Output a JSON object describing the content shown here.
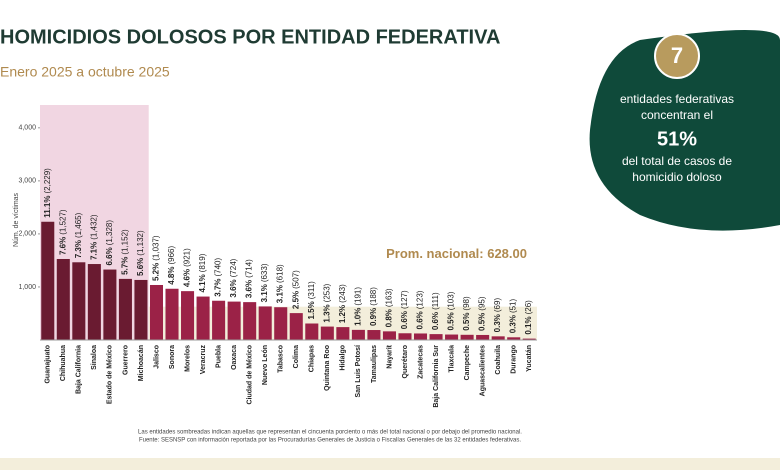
{
  "chart_data": {
    "type": "bar",
    "title": "HOMICIDIOS DOLOSOS POR ENTIDAD FEDERATIVA",
    "subtitle": "Enero 2025 a octubre 2025",
    "y_label": "Núm. de víctimas",
    "categories": [
      "Guanajuato",
      "Chihuahua",
      "Baja California",
      "Sinaloa",
      "Estado de México",
      "Guerrero",
      "Michoacán",
      "Jalisco",
      "Sonora",
      "Morelos",
      "Veracruz",
      "Puebla",
      "Oaxaca",
      "Ciudad de México",
      "Nuevo León",
      "Tabasco",
      "Colima",
      "Chiapas",
      "Quintana Roo",
      "Hidalgo",
      "San Luis Potosí",
      "Tamaulipas",
      "Nayarit",
      "Querétaro",
      "Zacatecas",
      "Baja California Sur",
      "Tlaxcala",
      "Campeche",
      "Aguascalientes",
      "Coahuila",
      "Durango",
      "Yucatán"
    ],
    "values": [
      2229,
      1527,
      1465,
      1432,
      1328,
      1152,
      1132,
      1037,
      966,
      921,
      819,
      740,
      724,
      714,
      633,
      618,
      507,
      311,
      253,
      243,
      191,
      188,
      163,
      127,
      123,
      111,
      103,
      98,
      95,
      69,
      51,
      26
    ],
    "value_labels": [
      "(2,229)",
      "(1,527)",
      "(1,465)",
      "(1,432)",
      "(1,328)",
      "(1,152)",
      "(1,132)",
      "(1,037)",
      "(966)",
      "(921)",
      "(819)",
      "(740)",
      "(724)",
      "(714)",
      "(633)",
      "(618)",
      "(507)",
      "(311)",
      "(253)",
      "(243)",
      "(191)",
      "(188)",
      "(163)",
      "(127)",
      "(123)",
      "(111)",
      "(103)",
      "(98)",
      "(95)",
      "(69)",
      "(51)",
      "(26)"
    ],
    "share_labels": [
      "11.1%",
      "7.6%",
      "7.3%",
      "7.1%",
      "6.6%",
      "5.7%",
      "5.6%",
      "5.2%",
      "4.8%",
      "4.6%",
      "4.1%",
      "3.7%",
      "3.6%",
      "3.6%",
      "3.1%",
      "3.1%",
      "2.5%",
      "1.5%",
      "1.3%",
      "1.2%",
      "1.0%",
      "0.9%",
      "0.8%",
      "0.6%",
      "0.6%",
      "0.6%",
      "0.5%",
      "0.5%",
      "0.5%",
      "0.3%",
      "0.3%",
      "0.1%"
    ],
    "shaded": [
      true,
      true,
      true,
      true,
      true,
      true,
      true,
      false,
      false,
      false,
      false,
      false,
      false,
      false,
      false,
      false,
      false,
      false,
      false,
      false,
      false,
      false,
      false,
      false,
      false,
      false,
      false,
      false,
      false,
      false,
      false,
      false
    ],
    "color": "#9b2247",
    "shaded_color": "#6a1b31",
    "average": 628,
    "average_label": "Prom. nacional: 628.00",
    "ylim": [
      0,
      4430
    ],
    "yticks": [
      {
        "value": 1000,
        "label": "1,000"
      },
      {
        "value": 2000,
        "label": "2,000"
      },
      {
        "value": 3000,
        "label": "3,000"
      },
      {
        "value": 4000,
        "label": "4,000"
      }
    ]
  },
  "panel": {
    "number": "7",
    "line1": "entidades federativas",
    "line2": "concentran el",
    "percent": "51%",
    "line3": "del total de casos de",
    "line4": "homicidio doloso"
  },
  "notes": [
    "Las entidades sombreadas indican aquellas que representan el cincuenta porciento o más del total nacional o por debajo del promedio nacional.",
    "Fuente: SESNSP con información reportada por las Procuradurías Generales de Justicia o Fiscalías Generales de las 32 entidades federativas."
  ]
}
